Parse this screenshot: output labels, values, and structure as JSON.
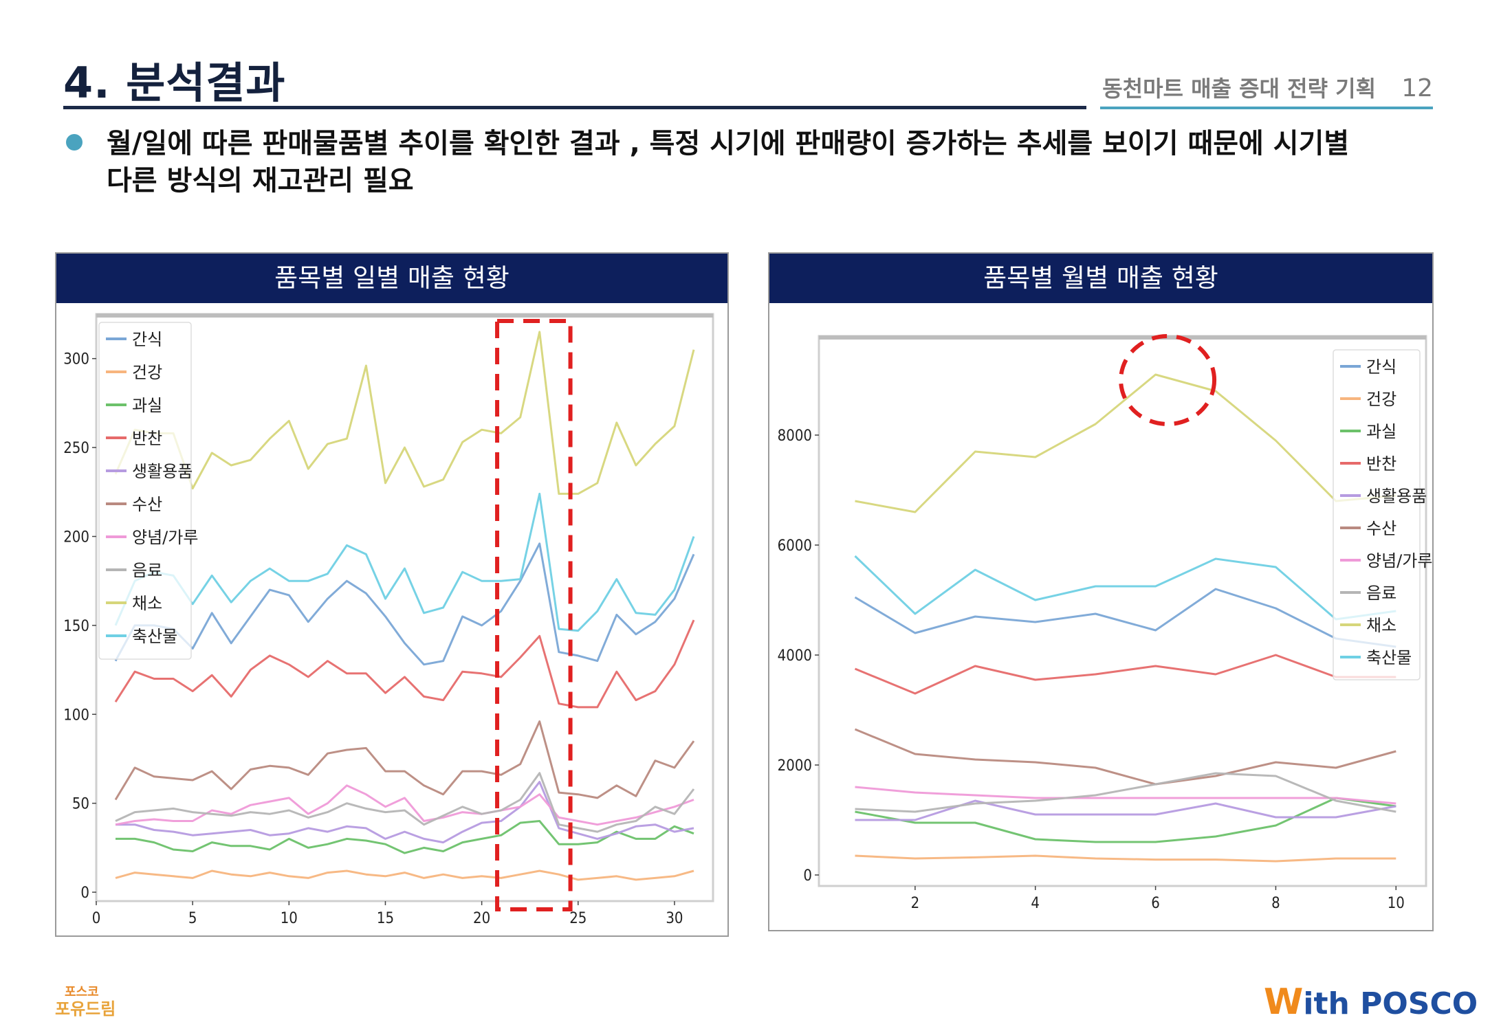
{
  "header": {
    "title": "4. 분석결과",
    "subtitle": "동천마트 매출 증대 전략 기획",
    "page_number": "12"
  },
  "bullet": {
    "text_line1": "월/일에 따른 판매물품별 추이를 확인한 결과 , 특정 시기에 판매량이 증가하는 추세를 보이기 때문에 시기별",
    "text_line2": "다른 방식의 재고관리 필요"
  },
  "footer": {
    "left_logo_top": "포스코",
    "left_logo_bottom": "포유드림",
    "right_logo_w": "W",
    "right_logo_text": "ith POSCO"
  },
  "colors": {
    "간식": "#7aa6d6",
    "건강": "#f7b57e",
    "과실": "#6cc16a",
    "반찬": "#e66a6a",
    "생활용품": "#b69be0",
    "수산": "#b98a80",
    "양념/가루": "#ef9ad8",
    "음료": "#b5b5b5",
    "채소": "#d6d67a",
    "축산물": "#6fd0e4",
    "highlight": "#e02020",
    "header_bg": "#0d1f5c"
  },
  "chart_data": [
    {
      "type": "line",
      "panel_title": "품목별 일별 매출 현황",
      "title": "",
      "xlabel": "",
      "ylabel": "",
      "xlim": [
        0,
        32
      ],
      "ylim": [
        -5,
        325
      ],
      "xticks": [
        0,
        5,
        10,
        15,
        20,
        25,
        30
      ],
      "yticks": [
        0,
        50,
        100,
        150,
        200,
        250,
        300
      ],
      "legend_position": "top-left",
      "highlight": "dashed rectangle around days 21–24",
      "x": [
        1,
        2,
        3,
        4,
        5,
        6,
        7,
        8,
        9,
        10,
        11,
        12,
        13,
        14,
        15,
        16,
        17,
        18,
        19,
        20,
        21,
        22,
        23,
        24,
        25,
        26,
        27,
        28,
        29,
        30,
        31
      ],
      "series": [
        {
          "name": "간식",
          "values": [
            130,
            150,
            150,
            148,
            137,
            157,
            140,
            155,
            170,
            167,
            152,
            165,
            175,
            168,
            155,
            140,
            128,
            130,
            155,
            150,
            158,
            175,
            196,
            135,
            133,
            130,
            156,
            145,
            152,
            165,
            190
          ]
        },
        {
          "name": "건강",
          "values": [
            8,
            11,
            10,
            9,
            8,
            12,
            10,
            9,
            11,
            9,
            8,
            11,
            12,
            10,
            9,
            11,
            8,
            10,
            8,
            9,
            8,
            10,
            12,
            10,
            7,
            8,
            9,
            7,
            8,
            9,
            12
          ]
        },
        {
          "name": "과실",
          "values": [
            30,
            30,
            28,
            24,
            23,
            28,
            26,
            26,
            24,
            30,
            25,
            27,
            30,
            29,
            27,
            22,
            25,
            23,
            28,
            30,
            32,
            39,
            40,
            27,
            27,
            28,
            34,
            30,
            30,
            37,
            33
          ]
        },
        {
          "name": "반찬",
          "values": [
            107,
            124,
            120,
            120,
            113,
            122,
            110,
            125,
            133,
            128,
            121,
            130,
            123,
            123,
            112,
            121,
            110,
            108,
            124,
            123,
            121,
            132,
            144,
            106,
            104,
            104,
            124,
            108,
            113,
            128,
            153
          ]
        },
        {
          "name": "생활용품",
          "values": [
            38,
            38,
            35,
            34,
            32,
            33,
            34,
            35,
            32,
            33,
            36,
            34,
            37,
            36,
            30,
            34,
            30,
            28,
            34,
            39,
            40,
            48,
            62,
            36,
            33,
            30,
            33,
            37,
            38,
            34,
            36
          ]
        },
        {
          "name": "수산",
          "values": [
            52,
            70,
            65,
            64,
            63,
            68,
            58,
            69,
            71,
            70,
            66,
            78,
            80,
            81,
            68,
            68,
            60,
            55,
            68,
            68,
            66,
            72,
            96,
            56,
            55,
            53,
            60,
            54,
            74,
            70,
            85
          ]
        },
        {
          "name": "양념/가루",
          "values": [
            38,
            40,
            41,
            40,
            40,
            46,
            44,
            49,
            51,
            53,
            44,
            50,
            60,
            55,
            48,
            53,
            40,
            42,
            45,
            44,
            46,
            48,
            55,
            42,
            40,
            38,
            40,
            42,
            45,
            48,
            52
          ]
        },
        {
          "name": "음료",
          "values": [
            40,
            45,
            46,
            47,
            45,
            44,
            43,
            45,
            44,
            46,
            42,
            45,
            50,
            47,
            45,
            46,
            38,
            43,
            48,
            44,
            46,
            52,
            67,
            38,
            36,
            34,
            38,
            40,
            48,
            44,
            58
          ]
        },
        {
          "name": "채소",
          "values": [
            235,
            260,
            258,
            258,
            227,
            247,
            240,
            243,
            255,
            265,
            238,
            252,
            255,
            296,
            230,
            250,
            228,
            232,
            253,
            260,
            258,
            267,
            315,
            224,
            224,
            230,
            264,
            240,
            252,
            262,
            305
          ]
        },
        {
          "name": "축산물",
          "values": [
            150,
            175,
            180,
            178,
            162,
            178,
            163,
            175,
            182,
            175,
            175,
            179,
            195,
            190,
            165,
            182,
            157,
            160,
            180,
            175,
            175,
            176,
            224,
            148,
            147,
            158,
            176,
            157,
            156,
            170,
            200
          ]
        }
      ]
    },
    {
      "type": "line",
      "panel_title": "품목별 월별 매출 현황",
      "title": "",
      "xlabel": "",
      "ylabel": "",
      "xlim": [
        0.4,
        10.5
      ],
      "ylim": [
        -200,
        9800
      ],
      "xticks": [
        2,
        4,
        6,
        8,
        10
      ],
      "yticks": [
        0,
        2000,
        4000,
        6000,
        8000
      ],
      "legend_position": "top-right",
      "highlight": "dashed circle around month 6",
      "x": [
        1,
        2,
        3,
        4,
        5,
        6,
        7,
        8,
        9,
        10
      ],
      "series": [
        {
          "name": "간식",
          "values": [
            5050,
            4400,
            4700,
            4600,
            4750,
            4450,
            5200,
            4850,
            4300,
            4150
          ]
        },
        {
          "name": "건강",
          "values": [
            350,
            300,
            320,
            350,
            300,
            280,
            280,
            250,
            300,
            300
          ]
        },
        {
          "name": "과실",
          "values": [
            1150,
            950,
            950,
            650,
            600,
            600,
            700,
            900,
            1400,
            1250
          ]
        },
        {
          "name": "반찬",
          "values": [
            3750,
            3300,
            3800,
            3550,
            3650,
            3800,
            3650,
            4000,
            3600,
            3600
          ]
        },
        {
          "name": "생활용품",
          "values": [
            1000,
            1000,
            1350,
            1100,
            1100,
            1100,
            1300,
            1050,
            1050,
            1250
          ]
        },
        {
          "name": "수산",
          "values": [
            2650,
            2200,
            2100,
            2050,
            1950,
            1650,
            1800,
            2050,
            1950,
            2250
          ]
        },
        {
          "name": "양념/가루",
          "values": [
            1600,
            1500,
            1450,
            1400,
            1400,
            1400,
            1400,
            1400,
            1400,
            1300
          ]
        },
        {
          "name": "음료",
          "values": [
            1200,
            1150,
            1300,
            1350,
            1450,
            1650,
            1850,
            1800,
            1350,
            1150
          ]
        },
        {
          "name": "채소",
          "values": [
            6800,
            6600,
            7700,
            7600,
            8200,
            9100,
            8800,
            7900,
            6800,
            6900
          ]
        },
        {
          "name": "축산물",
          "values": [
            5800,
            4750,
            5550,
            5000,
            5250,
            5250,
            5750,
            5600,
            4650,
            4800
          ]
        }
      ]
    }
  ]
}
